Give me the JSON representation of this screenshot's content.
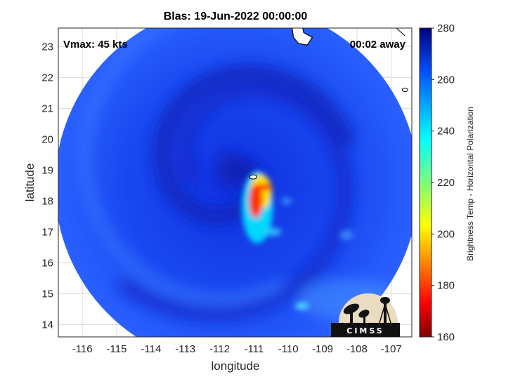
{
  "chart_data": {
    "type": "heatmap",
    "title": "Blas: 19-Jun-2022 00:00:00",
    "xlabel": "longitude",
    "ylabel": "latitude",
    "xlim": [
      -116.7,
      -106.4
    ],
    "ylim": [
      13.6,
      23.6
    ],
    "x_ticks": [
      -116,
      -115,
      -114,
      -113,
      -112,
      -111,
      -110,
      -109,
      -108,
      -107
    ],
    "y_ticks": [
      14,
      15,
      16,
      17,
      18,
      19,
      20,
      21,
      22,
      23
    ],
    "grid": true,
    "annotations": {
      "vmax": "Vmax: 45 kts",
      "time_away": "00:02 away"
    },
    "colorbar": {
      "label": "Brightness Temp - Horizontal Polarization",
      "range": [
        160,
        280
      ],
      "ticks": [
        160,
        180,
        200,
        220,
        240,
        260,
        280
      ]
    },
    "storm_center": {
      "lon": -111.6,
      "lat": 19.0
    },
    "swath": {
      "center_lon": -111.5,
      "center_lat": 18.5,
      "radius_deg": 5.3
    },
    "cold_core_min_tb": 180,
    "logo_text": "CIMSS"
  }
}
